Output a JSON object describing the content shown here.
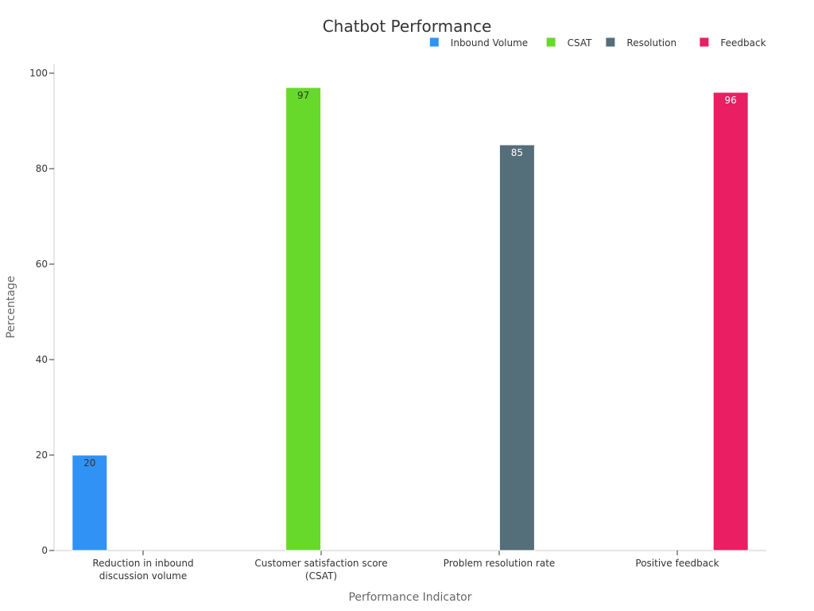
{
  "chart_data": {
    "type": "bar",
    "title": "Chatbot Performance",
    "xlabel": "Performance Indicator",
    "ylabel": "Percentage",
    "ylim": [
      0,
      100
    ],
    "yticks": [
      0,
      20,
      40,
      60,
      80,
      100
    ],
    "grid": false,
    "legend_position": "top-right",
    "categories": [
      [
        "Reduction in inbound",
        "discussion volume"
      ],
      [
        "Customer satisfaction score",
        "(CSAT)"
      ],
      [
        "Problem resolution rate"
      ],
      [
        "Positive feedback"
      ]
    ],
    "series": [
      {
        "name": "Inbound Volume",
        "color": "#3092f5",
        "label_color": "#333333",
        "values": [
          20,
          null,
          null,
          null
        ]
      },
      {
        "name": "CSAT",
        "color": "#66d92a",
        "label_color": "#333333",
        "values": [
          null,
          97,
          null,
          null
        ]
      },
      {
        "name": "Resolution",
        "color": "#546e7a",
        "label_color": "#ffffff",
        "values": [
          null,
          null,
          85,
          null
        ]
      },
      {
        "name": "Feedback",
        "color": "#e91e63",
        "label_color": "#ffffff",
        "values": [
          null,
          null,
          null,
          96
        ]
      }
    ]
  }
}
